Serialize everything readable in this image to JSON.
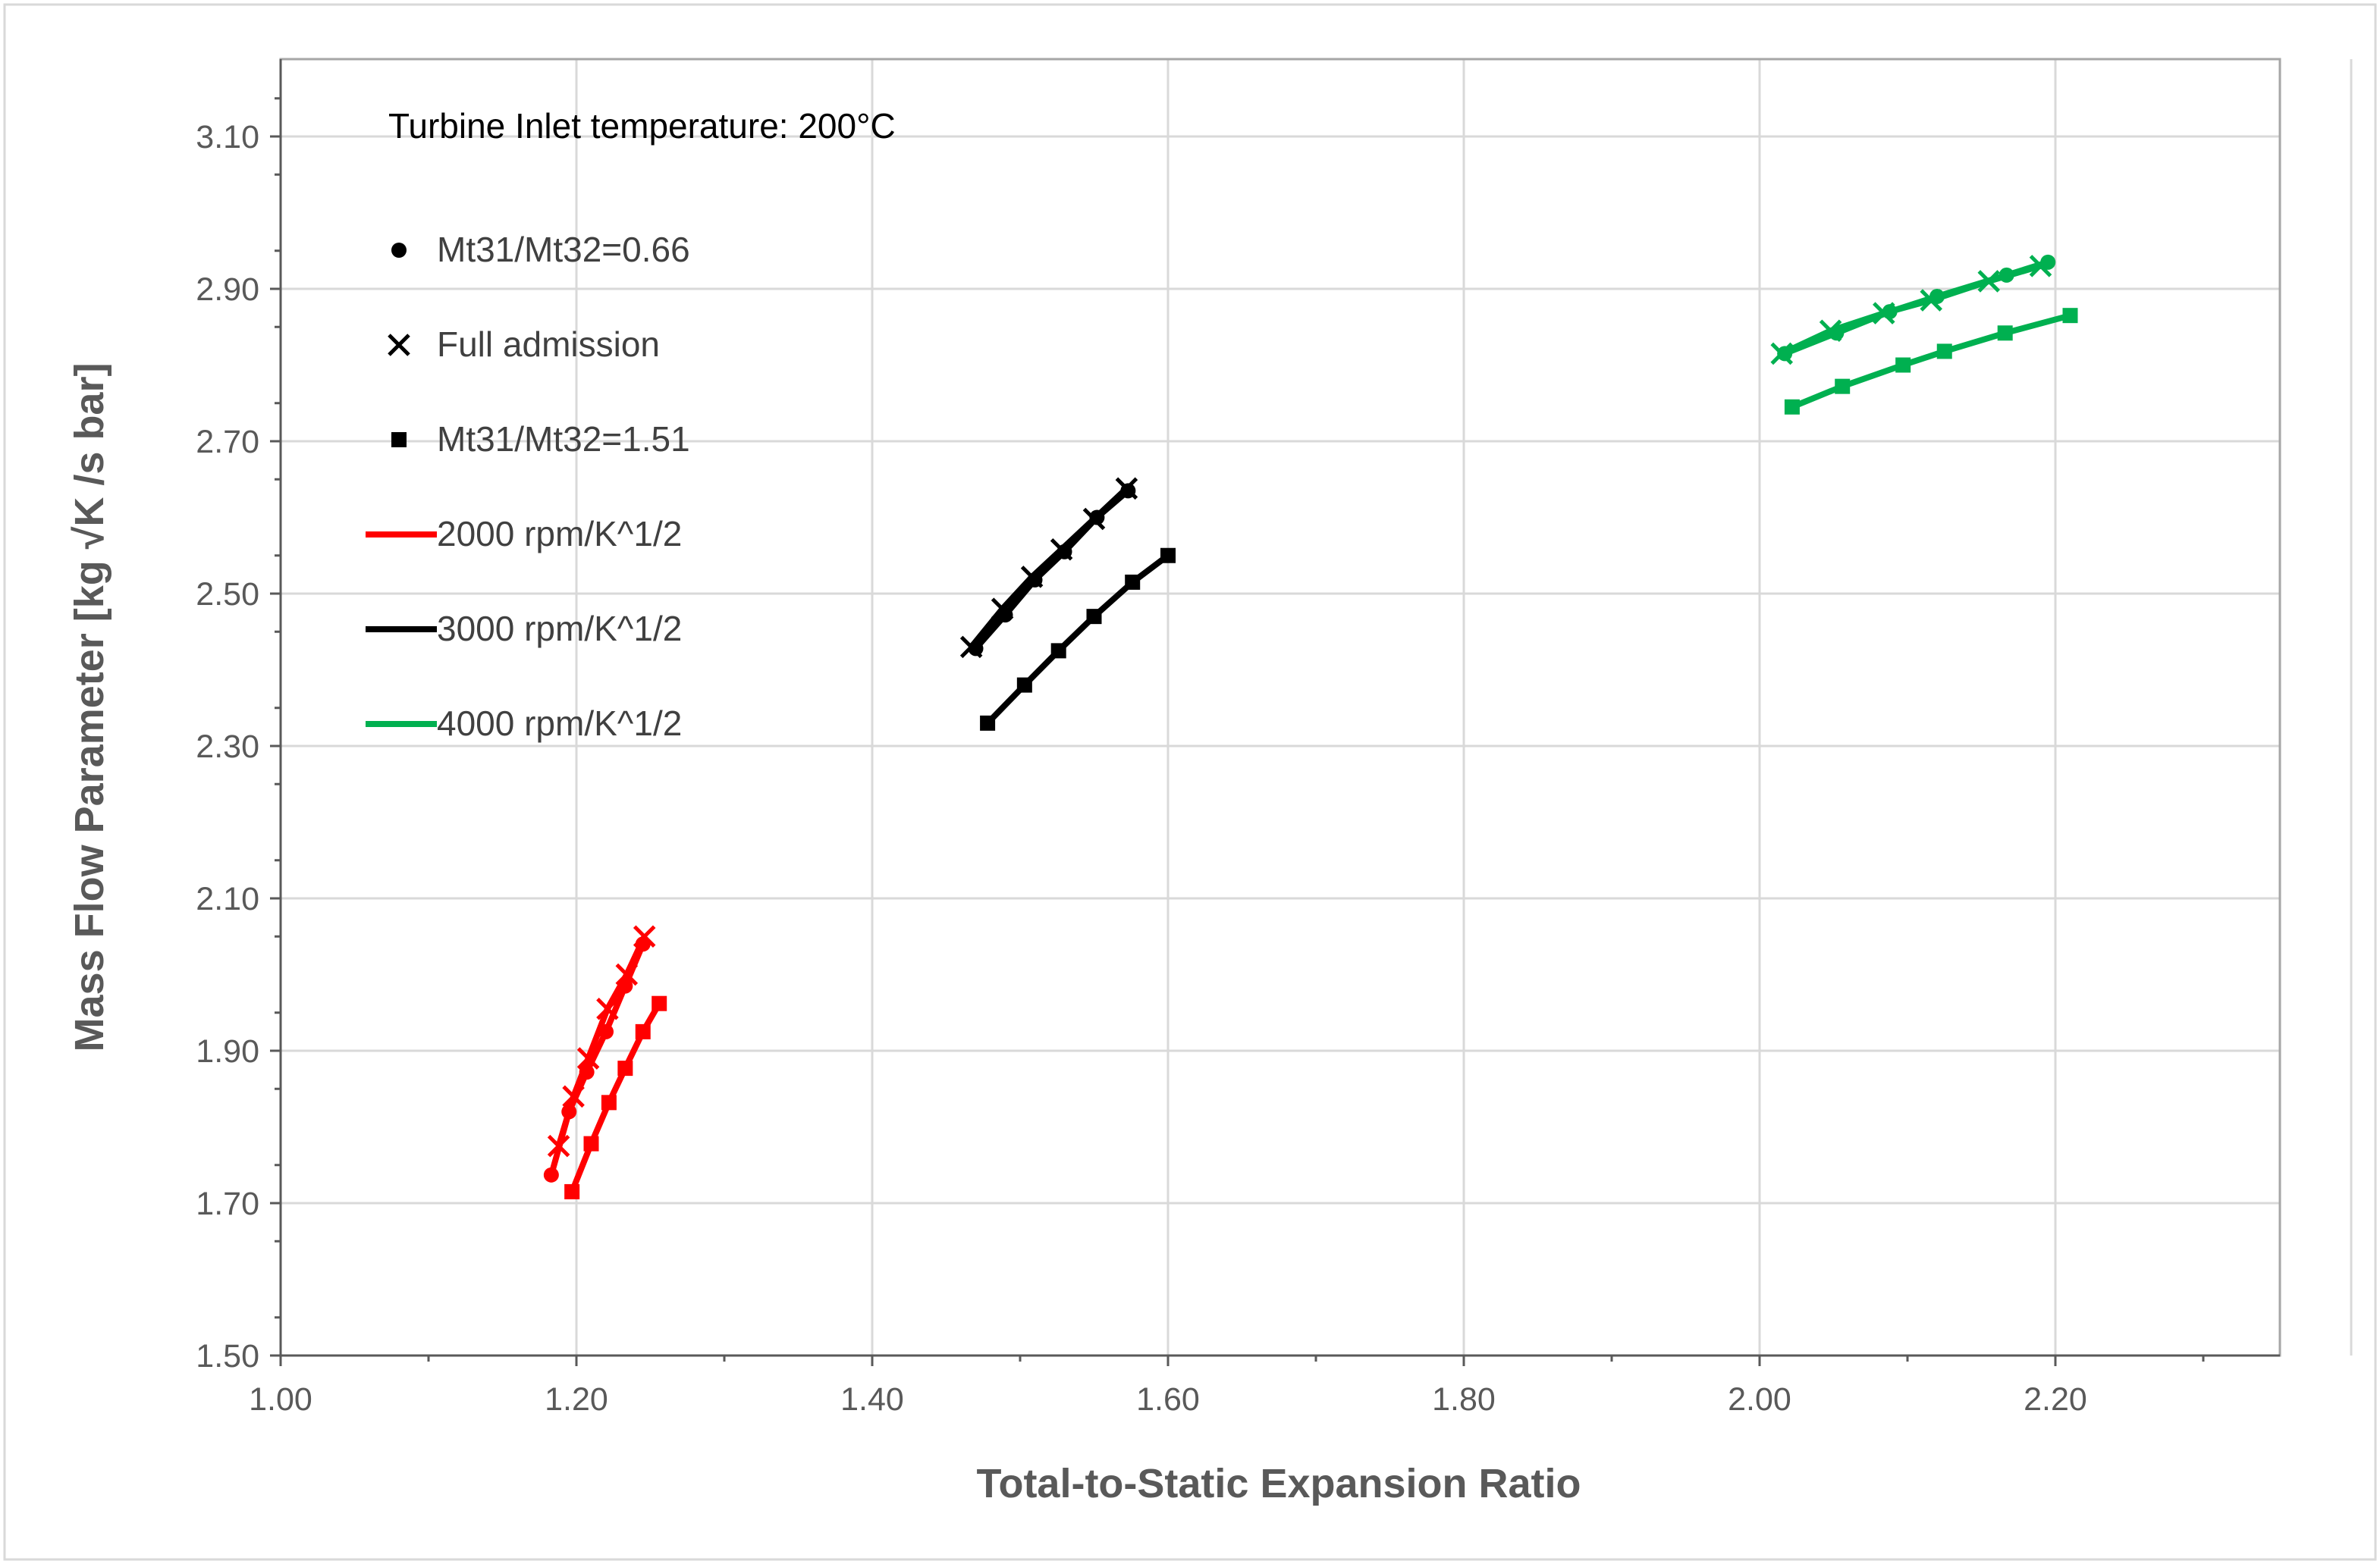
{
  "chart_data": {
    "type": "line",
    "annotation": "Turbine Inlet temperature: 200°C",
    "xlabel": "Total-to-Static Expansion Ratio",
    "ylabel": "Mass Flow Parameter [kg √K /s bar]",
    "xlim": [
      1.0,
      2.35
    ],
    "ylim": [
      1.5,
      3.2
    ],
    "x_ticks": [
      "1.00",
      "1.20",
      "1.40",
      "1.60",
      "1.80",
      "2.00",
      "2.20"
    ],
    "y_ticks": [
      "1.50",
      "1.70",
      "1.90",
      "2.10",
      "2.30",
      "2.50",
      "2.70",
      "2.90",
      "3.10"
    ],
    "grid": true,
    "legend_position": "top-left",
    "marker_legend": [
      {
        "marker": "circle",
        "label": "Mt31/Mt32=0.66"
      },
      {
        "marker": "cross",
        "label": "Full admission"
      },
      {
        "marker": "square",
        "label": "Mt31/Mt32=1.51"
      }
    ],
    "speed_legend": [
      {
        "color": "#ff0000",
        "label": "2000 rpm/K^1/2"
      },
      {
        "color": "#000000",
        "label": "3000 rpm/K^1/2"
      },
      {
        "color": "#00b050",
        "label": "4000 rpm/K^1/2"
      }
    ],
    "series": [
      {
        "speed": "2000 rpm/K^1/2",
        "marker": "circle",
        "color": "#ff0000",
        "x": [
          1.183,
          1.195,
          1.207,
          1.22,
          1.233,
          1.245
        ],
        "y": [
          1.737,
          1.82,
          1.872,
          1.925,
          1.985,
          2.04
        ]
      },
      {
        "speed": "2000 rpm/K^1/2",
        "marker": "cross",
        "color": "#ff0000",
        "x": [
          1.188,
          1.198,
          1.208,
          1.221,
          1.234,
          1.246
        ],
        "y": [
          1.775,
          1.84,
          1.89,
          1.955,
          2.0,
          2.05
        ]
      },
      {
        "speed": "2000 rpm/K^1/2",
        "marker": "square",
        "color": "#ff0000",
        "x": [
          1.197,
          1.21,
          1.222,
          1.233,
          1.245,
          1.256
        ],
        "y": [
          1.715,
          1.778,
          1.832,
          1.877,
          1.925,
          1.962
        ]
      },
      {
        "speed": "3000 rpm/K^1/2",
        "marker": "circle",
        "color": "#000000",
        "x": [
          1.47,
          1.49,
          1.51,
          1.53,
          1.552,
          1.573
        ],
        "y": [
          2.428,
          2.472,
          2.518,
          2.555,
          2.6,
          2.635
        ]
      },
      {
        "speed": "3000 rpm/K^1/2",
        "marker": "cross",
        "color": "#000000",
        "x": [
          1.467,
          1.488,
          1.508,
          1.528,
          1.55,
          1.572
        ],
        "y": [
          2.43,
          2.48,
          2.522,
          2.558,
          2.598,
          2.638
        ]
      },
      {
        "speed": "3000 rpm/K^1/2",
        "marker": "square",
        "color": "#000000",
        "x": [
          1.478,
          1.503,
          1.526,
          1.55,
          1.576,
          1.6
        ],
        "y": [
          2.33,
          2.38,
          2.425,
          2.47,
          2.515,
          2.55
        ]
      },
      {
        "speed": "4000 rpm/K^1/2",
        "marker": "circle",
        "color": "#00b050",
        "x": [
          2.017,
          2.052,
          2.088,
          2.12,
          2.167,
          2.195
        ],
        "y": [
          2.815,
          2.842,
          2.87,
          2.89,
          2.918,
          2.935
        ]
      },
      {
        "speed": "4000 rpm/K^1/2",
        "marker": "cross",
        "color": "#00b050",
        "x": [
          2.015,
          2.048,
          2.084,
          2.116,
          2.155,
          2.19
        ],
        "y": [
          2.815,
          2.845,
          2.868,
          2.885,
          2.91,
          2.93
        ]
      },
      {
        "speed": "4000 rpm/K^1/2",
        "marker": "square",
        "color": "#00b050",
        "x": [
          2.022,
          2.056,
          2.097,
          2.125,
          2.166,
          2.21
        ],
        "y": [
          2.745,
          2.772,
          2.8,
          2.818,
          2.842,
          2.865
        ]
      }
    ]
  }
}
